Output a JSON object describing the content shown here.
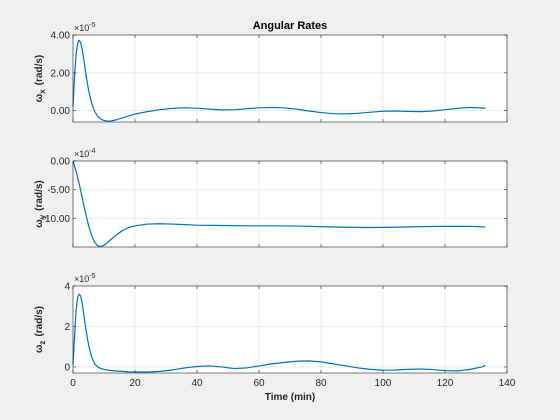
{
  "chart_data": [
    {
      "type": "line",
      "title": "Angular Rates",
      "ylabel": "ω_x (rad/s)",
      "ylabel_symbol": "ω",
      "ylabel_sub": "x",
      "ylabel_unit": "(rad/s)",
      "exponent_label": "×10",
      "exponent_power": "-5",
      "xlim": [
        0,
        140
      ],
      "ylim": [
        -0.6,
        4.0
      ],
      "yticks": [
        0.0,
        2.0,
        4.0
      ],
      "ytick_labels": [
        "0.00",
        "2.00",
        "4.00"
      ],
      "grid": true,
      "series": [
        {
          "x": [
            0,
            0.5,
            1,
            1.5,
            2,
            2.5,
            3,
            3.5,
            4,
            5,
            6,
            7,
            8,
            9,
            10,
            11,
            12,
            13,
            14,
            16,
            18,
            20,
            24,
            28,
            32,
            36,
            40,
            44,
            48,
            52,
            56,
            60,
            64,
            68,
            72,
            76,
            80,
            84,
            88,
            92,
            96,
            100,
            104,
            108,
            112,
            116,
            120,
            124,
            128,
            132,
            133
          ],
          "values": [
            0.2,
            1.8,
            3.0,
            3.55,
            3.72,
            3.6,
            3.2,
            2.7,
            2.1,
            1.1,
            0.4,
            -0.05,
            -0.3,
            -0.45,
            -0.52,
            -0.55,
            -0.55,
            -0.52,
            -0.48,
            -0.38,
            -0.28,
            -0.18,
            -0.05,
            0.05,
            0.12,
            0.15,
            0.13,
            0.08,
            0.04,
            0.05,
            0.1,
            0.15,
            0.17,
            0.15,
            0.08,
            -0.02,
            -0.1,
            -0.16,
            -0.17,
            -0.14,
            -0.08,
            -0.03,
            -0.02,
            -0.04,
            -0.05,
            -0.02,
            0.05,
            0.12,
            0.17,
            0.14,
            0.12
          ]
        }
      ]
    },
    {
      "type": "line",
      "title": "",
      "ylabel": "ω_y (rad/s)",
      "ylabel_symbol": "ω",
      "ylabel_sub": "y",
      "ylabel_unit": "(rad/s)",
      "exponent_label": "×10",
      "exponent_power": "-4",
      "xlim": [
        0,
        140
      ],
      "ylim": [
        -15.0,
        0.0
      ],
      "yticks": [
        -10.0,
        -5.0,
        0.0
      ],
      "ytick_labels": [
        "-10.00",
        "-5.00",
        "0.00"
      ],
      "grid": true,
      "series": [
        {
          "x": [
            0,
            1,
            2,
            3,
            4,
            5,
            6,
            7,
            8,
            9,
            10,
            11,
            12,
            14,
            16,
            18,
            20,
            24,
            28,
            32,
            36,
            40,
            48,
            56,
            64,
            72,
            80,
            88,
            96,
            104,
            112,
            120,
            128,
            133
          ],
          "values": [
            0,
            -1.8,
            -4.0,
            -6.5,
            -9.0,
            -11.2,
            -13.0,
            -14.2,
            -14.8,
            -14.9,
            -14.7,
            -14.3,
            -13.8,
            -12.9,
            -12.1,
            -11.6,
            -11.3,
            -11.0,
            -10.95,
            -11.0,
            -11.1,
            -11.2,
            -11.25,
            -11.3,
            -11.3,
            -11.35,
            -11.45,
            -11.55,
            -11.6,
            -11.55,
            -11.45,
            -11.4,
            -11.4,
            -11.5
          ]
        }
      ]
    },
    {
      "type": "line",
      "title": "",
      "ylabel": "ω_z (rad/s)",
      "ylabel_symbol": "ω",
      "ylabel_sub": "z",
      "ylabel_unit": "(rad/s)",
      "exponent_label": "×10",
      "exponent_power": "-5",
      "xlabel": "Time (min)",
      "xlim": [
        0,
        140
      ],
      "xticks": [
        0,
        20,
        40,
        60,
        80,
        100,
        120,
        140
      ],
      "xtick_labels": [
        "0",
        "20",
        "40",
        "60",
        "80",
        "100",
        "120",
        "140"
      ],
      "ylim": [
        -0.3,
        4.0
      ],
      "yticks": [
        0,
        2,
        4
      ],
      "ytick_labels": [
        "0",
        "2",
        "4"
      ],
      "grid": true,
      "series": [
        {
          "x": [
            0,
            0.5,
            1,
            1.5,
            2,
            2.5,
            3,
            3.5,
            4,
            5,
            6,
            7,
            8,
            9,
            10,
            11,
            12,
            14,
            16,
            18,
            20,
            24,
            28,
            32,
            36,
            40,
            44,
            48,
            52,
            56,
            60,
            64,
            68,
            72,
            76,
            80,
            84,
            88,
            92,
            96,
            100,
            104,
            108,
            112,
            116,
            120,
            124,
            128,
            132,
            133
          ],
          "values": [
            0.1,
            1.5,
            2.8,
            3.45,
            3.6,
            3.5,
            3.1,
            2.6,
            2.0,
            1.1,
            0.5,
            0.15,
            0.0,
            -0.08,
            -0.12,
            -0.15,
            -0.17,
            -0.2,
            -0.22,
            -0.24,
            -0.25,
            -0.25,
            -0.22,
            -0.15,
            -0.05,
            0.02,
            0.05,
            0.0,
            -0.08,
            -0.05,
            0.05,
            0.15,
            0.22,
            0.28,
            0.3,
            0.25,
            0.15,
            0.05,
            -0.05,
            -0.12,
            -0.16,
            -0.15,
            -0.12,
            -0.1,
            -0.13,
            -0.18,
            -0.2,
            -0.12,
            0.0,
            0.08
          ]
        }
      ]
    }
  ],
  "colors": {
    "line": "#0072BD",
    "axes_bg": "#ffffff",
    "figure_bg": "#f0f0f0",
    "grid": "#e6e6e6",
    "axis": "#262626"
  }
}
